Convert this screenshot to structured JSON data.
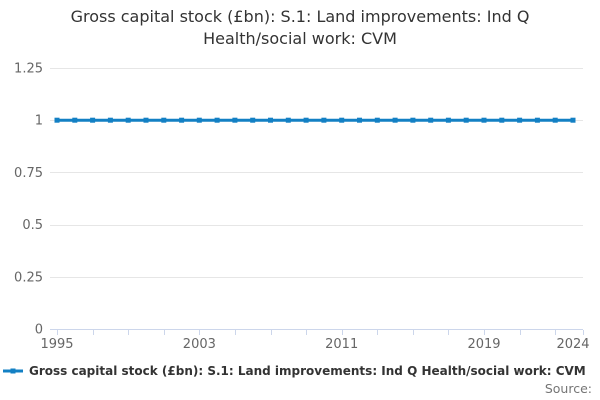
{
  "title": "Gross capital stock (£bn): S.1: Land improvements: Ind Q Health/social work: CVM",
  "source_label": "Source:",
  "legend": {
    "label": "Gross capital stock (£bn): S.1: Land improvements: Ind Q Health/social work: CVM"
  },
  "colors": {
    "line": "#1380c4",
    "grid": "#e6e6e6",
    "axis": "#ccd6eb",
    "title_text": "#333333",
    "axis_label": "#666666",
    "legend_text": "#333333",
    "source_text": "#757575",
    "background": "#ffffff"
  },
  "chart_data": {
    "type": "line",
    "title": "Gross capital stock (£bn): S.1: Land improvements: Ind Q Health/social work: CVM",
    "x": [
      1995,
      1996,
      1997,
      1998,
      1999,
      2000,
      2001,
      2002,
      2003,
      2004,
      2005,
      2006,
      2007,
      2008,
      2009,
      2010,
      2011,
      2012,
      2013,
      2014,
      2015,
      2016,
      2017,
      2018,
      2019,
      2020,
      2021,
      2022,
      2023,
      2024
    ],
    "series": [
      {
        "name": "Gross capital stock (£bn): S.1: Land improvements: Ind Q Health/social work: CVM",
        "values": [
          1,
          1,
          1,
          1,
          1,
          1,
          1,
          1,
          1,
          1,
          1,
          1,
          1,
          1,
          1,
          1,
          1,
          1,
          1,
          1,
          1,
          1,
          1,
          1,
          1,
          1,
          1,
          1,
          1,
          1
        ]
      }
    ],
    "xlabel": "",
    "ylabel": "",
    "ylim": [
      0,
      1.25
    ],
    "yticks": [
      0,
      0.25,
      0.5,
      0.75,
      1,
      1.25
    ],
    "xtick_labels": [
      1995,
      2003,
      2011,
      2019,
      2024
    ],
    "minor_ticks": [
      1995,
      1997,
      1999,
      2001,
      2003,
      2005,
      2007,
      2009,
      2011,
      2013,
      2015,
      2017,
      2019,
      2021,
      2023
    ],
    "end_tick": true,
    "grid": "horizontal",
    "legend_position": "bottom-left",
    "marker": "square"
  }
}
